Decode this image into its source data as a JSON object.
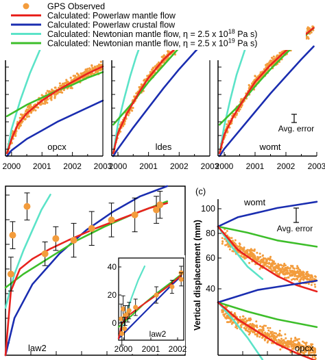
{
  "legend": {
    "placement": "top",
    "entries": [
      {
        "key": "gps",
        "label": "GPS Observed",
        "marker": "circle",
        "color": "#F39C3C"
      },
      {
        "key": "power_mantle",
        "label": "Calculated: Powerlaw mantle flow",
        "color": "#E8231E"
      },
      {
        "key": "power_crust",
        "label": "Calculated: Powerlaw crustal flow",
        "color": "#1A2DB0"
      },
      {
        "key": "newt18",
        "label": "Calculated: Newtonian mantle flow, η = 2.5 x 10",
        "sup": "18",
        "unit": " Pa s)",
        "color": "#5BE3C8"
      },
      {
        "key": "newt19",
        "label": "Calculated: Newtonian mantle flow, η = 2.5 x 10",
        "sup": "19",
        "unit": " Pa s)",
        "color": "#3DBE2A"
      }
    ]
  },
  "colors": {
    "gps": "#F39C3C",
    "power_mantle": "#E8231E",
    "power_crust": "#1A2DB0",
    "newt18": "#5BE3C8",
    "newt19": "#3DBE2A",
    "axis": "#000000"
  },
  "panels_top": [
    {
      "station": "opcx",
      "xticks": [
        "2000",
        "2001",
        "2002",
        "2003"
      ]
    },
    {
      "station": "ldes",
      "xticks": [
        "2000",
        "2001",
        "2002",
        "2003"
      ]
    },
    {
      "station": "womt",
      "xticks": [
        "2000",
        "2001",
        "2002",
        "2003"
      ],
      "note": "Avg. error"
    }
  ],
  "panel_b": {
    "station": "law2",
    "inset": {
      "station": "law2",
      "yticks": [
        "0",
        "20",
        "40"
      ],
      "xticks": [
        "2000",
        "2001",
        "2002"
      ]
    }
  },
  "panel_c": {
    "tag": "(c)",
    "ylabel": "Vertical displacement (mm)",
    "yticks": [
      "40",
      "60",
      "80",
      "100"
    ],
    "stations": [
      "womt",
      "opcx"
    ],
    "note": "Avg. error"
  },
  "chart_data": {
    "type": "line",
    "x_unit": "year",
    "series_keys": [
      "gps",
      "power_mantle",
      "power_crust",
      "newt18",
      "newt19"
    ],
    "top_panels": [
      {
        "station": "opcx",
        "xlim": [
          1999.8,
          2003.0
        ],
        "power_mantle": [
          [
            1999.85,
            0.02
          ],
          [
            2000.0,
            0.12
          ],
          [
            2000.2,
            0.22
          ],
          [
            2000.5,
            0.3
          ],
          [
            2001.0,
            0.39
          ],
          [
            2001.5,
            0.46
          ],
          [
            2002.0,
            0.52
          ],
          [
            2002.5,
            0.58
          ],
          [
            2003.0,
            0.63
          ]
        ],
        "power_crust": [
          [
            1999.85,
            0.0
          ],
          [
            2000.0,
            0.04
          ],
          [
            2000.5,
            0.12
          ],
          [
            2001.0,
            0.18
          ],
          [
            2001.5,
            0.24
          ],
          [
            2002.0,
            0.29
          ],
          [
            2002.5,
            0.34
          ],
          [
            2003.0,
            0.39
          ]
        ],
        "newt18": [
          [
            1999.85,
            0.02
          ],
          [
            2000.0,
            0.19
          ],
          [
            2000.3,
            0.4
          ],
          [
            2000.6,
            0.58
          ],
          [
            2000.9,
            0.73
          ],
          [
            2001.2,
            0.88
          ]
        ],
        "newt19": [
          [
            1999.85,
            0.28
          ],
          [
            2000.5,
            0.36
          ],
          [
            2001.0,
            0.41
          ],
          [
            2001.5,
            0.46
          ],
          [
            2002.0,
            0.5
          ],
          [
            2002.5,
            0.55
          ],
          [
            2003.0,
            0.59
          ]
        ]
      },
      {
        "station": "ldes",
        "xlim": [
          1999.8,
          2003.0
        ],
        "power_mantle": [
          [
            1999.85,
            0.02
          ],
          [
            2000.0,
            0.16
          ],
          [
            2000.3,
            0.3
          ],
          [
            2000.7,
            0.45
          ],
          [
            2001.0,
            0.55
          ],
          [
            2001.5,
            0.68
          ],
          [
            2002.0,
            0.78
          ],
          [
            2002.5,
            0.87
          ],
          [
            2002.9,
            0.94
          ]
        ],
        "power_crust": [
          [
            1999.85,
            0.0
          ],
          [
            2000.0,
            0.05
          ],
          [
            2000.5,
            0.2
          ],
          [
            2001.0,
            0.34
          ],
          [
            2001.5,
            0.48
          ],
          [
            2002.0,
            0.61
          ],
          [
            2002.5,
            0.73
          ],
          [
            2002.9,
            0.82
          ]
        ],
        "newt18": [
          [
            1999.85,
            0.02
          ],
          [
            2000.0,
            0.22
          ],
          [
            2000.2,
            0.4
          ],
          [
            2000.4,
            0.56
          ],
          [
            2000.6,
            0.7
          ],
          [
            2000.8,
            0.82
          ]
        ],
        "newt19": [
          [
            1999.85,
            0.22
          ],
          [
            2000.5,
            0.38
          ],
          [
            2001.0,
            0.52
          ],
          [
            2001.5,
            0.64
          ],
          [
            2002.0,
            0.76
          ],
          [
            2002.5,
            0.86
          ],
          [
            2002.9,
            0.94
          ]
        ]
      },
      {
        "station": "womt",
        "xlim": [
          1999.8,
          2003.0
        ],
        "power_mantle": [
          [
            1999.85,
            0.02
          ],
          [
            2000.0,
            0.15
          ],
          [
            2000.3,
            0.28
          ],
          [
            2000.7,
            0.42
          ],
          [
            2001.0,
            0.52
          ],
          [
            2001.5,
            0.64
          ],
          [
            2002.0,
            0.74
          ],
          [
            2002.5,
            0.83
          ],
          [
            2002.9,
            0.9
          ]
        ],
        "power_crust": [
          [
            1999.85,
            0.0
          ],
          [
            2000.0,
            0.05
          ],
          [
            2000.5,
            0.18
          ],
          [
            2001.0,
            0.31
          ],
          [
            2001.5,
            0.44
          ],
          [
            2002.0,
            0.56
          ],
          [
            2002.5,
            0.68
          ],
          [
            2002.9,
            0.77
          ]
        ],
        "newt18": [
          [
            1999.85,
            0.02
          ],
          [
            2000.0,
            0.21
          ],
          [
            2000.2,
            0.4
          ],
          [
            2000.4,
            0.57
          ],
          [
            2000.6,
            0.7
          ],
          [
            2000.75,
            0.8
          ]
        ],
        "newt19": [
          [
            1999.85,
            0.22
          ],
          [
            2000.5,
            0.36
          ],
          [
            2001.0,
            0.49
          ],
          [
            2001.5,
            0.61
          ],
          [
            2002.0,
            0.72
          ],
          [
            2002.5,
            0.82
          ],
          [
            2002.9,
            0.9
          ]
        ]
      }
    ],
    "panel_b": {
      "station": "law2",
      "gps_points": [
        [
          0.03,
          0.52
        ],
        [
          0.04,
          0.29
        ],
        [
          0.12,
          0.12
        ],
        [
          0.22,
          0.4
        ],
        [
          0.28,
          0.31
        ],
        [
          0.38,
          0.32
        ],
        [
          0.48,
          0.25
        ],
        [
          0.59,
          0.2
        ],
        [
          0.72,
          0.17
        ],
        [
          0.84,
          0.14
        ],
        [
          0.86,
          0.11
        ]
      ],
      "gps_error": [
        [
          0.03,
          0.1
        ],
        [
          0.04,
          0.08
        ],
        [
          0.12,
          0.08
        ],
        [
          0.22,
          0.07
        ],
        [
          0.28,
          0.07
        ],
        [
          0.38,
          0.1
        ],
        [
          0.48,
          0.1
        ],
        [
          0.59,
          0.1
        ],
        [
          0.72,
          0.1
        ],
        [
          0.84,
          0.08
        ],
        [
          0.86,
          0.08
        ]
      ],
      "power_mantle": [
        [
          0.0,
          1.0
        ],
        [
          0.03,
          0.62
        ],
        [
          0.08,
          0.49
        ],
        [
          0.15,
          0.43
        ],
        [
          0.25,
          0.37
        ],
        [
          0.35,
          0.32
        ],
        [
          0.5,
          0.25
        ],
        [
          0.65,
          0.19
        ],
        [
          0.8,
          0.13
        ],
        [
          0.9,
          0.1
        ]
      ],
      "power_crust": [
        [
          0.0,
          1.0
        ],
        [
          0.05,
          0.78
        ],
        [
          0.15,
          0.58
        ],
        [
          0.3,
          0.4
        ],
        [
          0.45,
          0.26
        ],
        [
          0.6,
          0.15
        ],
        [
          0.75,
          0.06
        ],
        [
          0.9,
          0.0
        ]
      ],
      "newt18": [
        [
          0.0,
          0.72
        ],
        [
          0.05,
          0.52
        ],
        [
          0.1,
          0.38
        ],
        [
          0.15,
          0.26
        ],
        [
          0.2,
          0.14
        ],
        [
          0.25,
          0.05
        ]
      ],
      "newt19": [
        [
          0.0,
          0.6
        ],
        [
          0.1,
          0.52
        ],
        [
          0.25,
          0.42
        ],
        [
          0.4,
          0.32
        ],
        [
          0.55,
          0.24
        ],
        [
          0.7,
          0.17
        ],
        [
          0.9,
          0.09
        ]
      ]
    },
    "panel_c": {
      "ylim": [
        20,
        110
      ],
      "top_group": {
        "station": "womt",
        "start_mm": 90,
        "power_mantle": [
          [
            0.0,
            90
          ],
          [
            0.2,
            75
          ],
          [
            0.4,
            66
          ],
          [
            0.6,
            58
          ],
          [
            0.8,
            52
          ],
          [
            1.0,
            48
          ]
        ],
        "power_crust": [
          [
            0.0,
            90
          ],
          [
            0.2,
            96
          ],
          [
            0.4,
            99
          ],
          [
            0.6,
            102
          ],
          [
            0.8,
            104
          ],
          [
            1.0,
            106
          ]
        ],
        "newt18": [
          [
            0.0,
            90
          ],
          [
            0.15,
            76
          ],
          [
            0.3,
            64
          ],
          [
            0.45,
            56
          ]
        ],
        "newt19": [
          [
            0.0,
            90
          ],
          [
            0.3,
            86
          ],
          [
            0.6,
            81
          ],
          [
            1.0,
            77
          ]
        ]
      },
      "bottom_group": {
        "station": "opcx",
        "start_mm": 41,
        "power_mantle": [
          [
            0.0,
            41
          ],
          [
            0.2,
            30
          ],
          [
            0.4,
            22
          ],
          [
            0.6,
            14
          ],
          [
            0.8,
            8
          ],
          [
            1.0,
            3
          ]
        ],
        "power_crust": [
          [
            0.0,
            41
          ],
          [
            0.2,
            45
          ],
          [
            0.4,
            49
          ],
          [
            0.6,
            51
          ],
          [
            0.8,
            53
          ],
          [
            1.0,
            55
          ]
        ],
        "newt18": [
          [
            0.0,
            41
          ],
          [
            0.15,
            30
          ],
          [
            0.3,
            18
          ],
          [
            0.45,
            4
          ]
        ],
        "newt19": [
          [
            0.0,
            41
          ],
          [
            0.3,
            35
          ],
          [
            0.6,
            30
          ],
          [
            1.0,
            25
          ]
        ]
      }
    }
  }
}
